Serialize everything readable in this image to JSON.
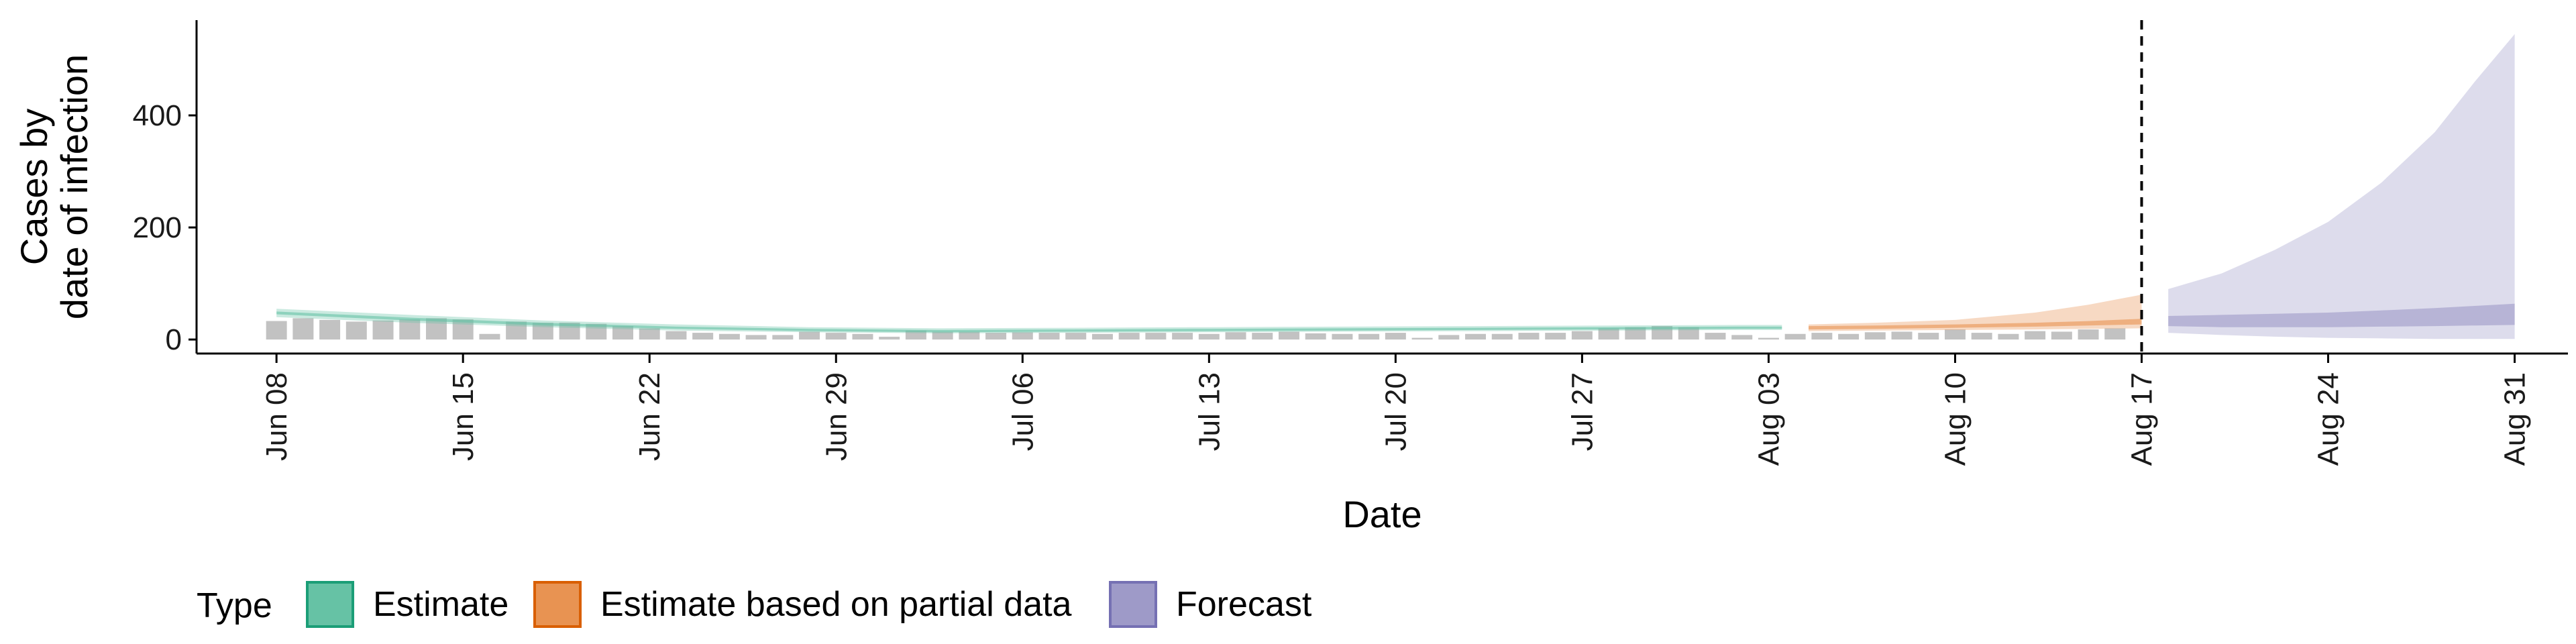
{
  "chart_data": {
    "type": "area",
    "xlabel": "Date",
    "ylabel_lines": [
      "Cases by",
      "date of infection"
    ],
    "ylim": [
      -25,
      570
    ],
    "yticks": [
      0,
      200,
      400
    ],
    "xlim_days": [
      -3,
      86
    ],
    "date_origin": "Jun 08",
    "xticks": [
      {
        "day": 0,
        "label": "Jun 08"
      },
      {
        "day": 7,
        "label": "Jun 15"
      },
      {
        "day": 14,
        "label": "Jun 22"
      },
      {
        "day": 21,
        "label": "Jun 29"
      },
      {
        "day": 28,
        "label": "Jul 06"
      },
      {
        "day": 35,
        "label": "Jul 13"
      },
      {
        "day": 42,
        "label": "Jul 20"
      },
      {
        "day": 49,
        "label": "Jul 27"
      },
      {
        "day": 56,
        "label": "Aug 03"
      },
      {
        "day": 63,
        "label": "Aug 10"
      },
      {
        "day": 70,
        "label": "Aug 17"
      },
      {
        "day": 77,
        "label": "Aug 24"
      },
      {
        "day": 84,
        "label": "Aug 31"
      }
    ],
    "vline_day": 70,
    "reported_cases": [
      33,
      38,
      35,
      32,
      34,
      36,
      38,
      36,
      10,
      32,
      30,
      30,
      28,
      24,
      20,
      15,
      12,
      10,
      8,
      8,
      14,
      12,
      10,
      5,
      16,
      14,
      14,
      12,
      13,
      12,
      12,
      10,
      12,
      12,
      12,
      10,
      13,
      12,
      14,
      11,
      10,
      10,
      12,
      3,
      8,
      10,
      10,
      12,
      12,
      15,
      20,
      22,
      24,
      22,
      12,
      8,
      3,
      10,
      12,
      10,
      13,
      14,
      12,
      18,
      12,
      10,
      15,
      14,
      18,
      20
    ],
    "series": [
      {
        "name": "Estimate",
        "color": "#1b9e77",
        "fill": "#66c2a5",
        "days": [
          0,
          5,
          10,
          15,
          20,
          25,
          30,
          35,
          40,
          45,
          50,
          55,
          56.5
        ],
        "lower": [
          40,
          30,
          22,
          16,
          13,
          11,
          12,
          13,
          14,
          15,
          16,
          17,
          17
        ],
        "upper": [
          55,
          44,
          34,
          27,
          22,
          20,
          21,
          22,
          23,
          24,
          25,
          26,
          26
        ],
        "lower50": [
          45,
          34,
          25,
          19,
          15,
          13,
          14,
          15,
          16,
          17,
          18,
          19,
          19
        ],
        "upper50": [
          50,
          39,
          30,
          23,
          19,
          17,
          18,
          19,
          20,
          21,
          22,
          23,
          23
        ]
      },
      {
        "name": "Estimate based on partial data",
        "color": "#d95f02",
        "fill": "#e89352",
        "days": [
          57.5,
          60,
          63,
          66,
          68,
          70
        ],
        "lower": [
          15,
          16,
          17,
          18,
          19,
          20
        ],
        "upper": [
          27,
          30,
          35,
          48,
          62,
          80
        ],
        "lower50": [
          18,
          19,
          21,
          23,
          25,
          27
        ],
        "upper50": [
          24,
          25,
          27,
          30,
          33,
          37
        ]
      },
      {
        "name": "Forecast",
        "color": "#7570b3",
        "fill": "#9e9ac8",
        "days": [
          71,
          73,
          75,
          77,
          79,
          81,
          82.5,
          84
        ],
        "lower": [
          12,
          8,
          5,
          3,
          2,
          1,
          1,
          1
        ],
        "upper": [
          90,
          118,
          160,
          210,
          280,
          370,
          460,
          545
        ],
        "lower50": [
          24,
          22,
          22,
          22,
          23,
          24,
          25,
          26
        ],
        "upper50": [
          42,
          44,
          46,
          48,
          52,
          56,
          60,
          64
        ]
      }
    ],
    "legend": {
      "title": "Type",
      "position": "bottom",
      "items": [
        {
          "label": "Estimate",
          "fill": "#66c2a5",
          "stroke": "#1b9e77"
        },
        {
          "label": "Estimate based on partial data",
          "fill": "#e89352",
          "stroke": "#d95f02"
        },
        {
          "label": "Forecast",
          "fill": "#9e9ac8",
          "stroke": "#7570b3"
        }
      ]
    }
  }
}
